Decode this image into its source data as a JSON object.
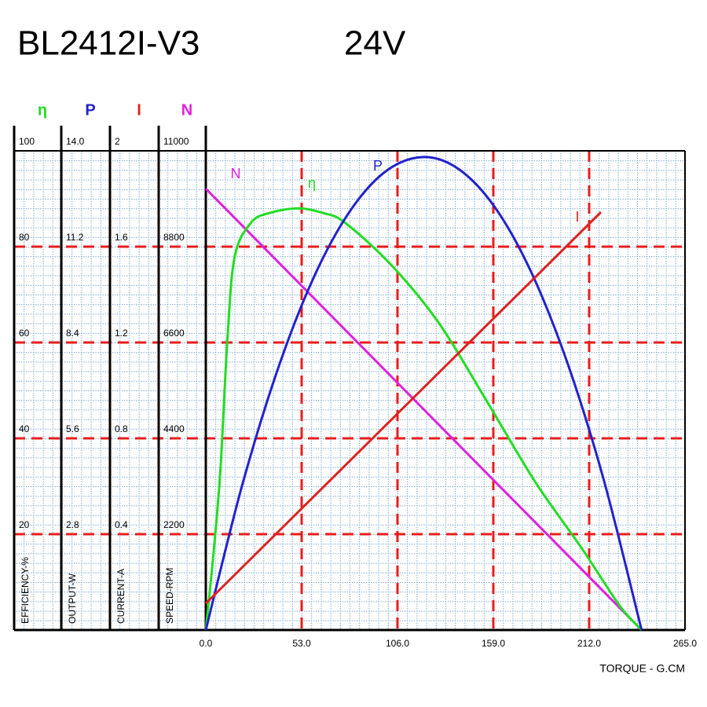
{
  "chart_data": {
    "type": "line",
    "title": "BL2412I-V3",
    "subtitle": "24V",
    "x_label": "TORQUE - G.CM",
    "xlim": [
      0,
      265
    ],
    "xticks": [
      {
        "value": 0,
        "label": "0.0"
      },
      {
        "value": 53,
        "label": "53.0"
      },
      {
        "value": 106,
        "label": "106.0"
      },
      {
        "value": 159,
        "label": "159.0"
      },
      {
        "value": 212,
        "label": "212.0"
      },
      {
        "value": 265,
        "label": "265.0"
      }
    ],
    "grid": true,
    "minor_grid": true,
    "grid_color": "#e81c1c",
    "axes": [
      {
        "symbol": "η",
        "label": "EFFICIENCY-%",
        "color": "#22dd22",
        "lim": [
          0,
          100
        ],
        "ticks": [
          20,
          40,
          60,
          80,
          100
        ]
      },
      {
        "symbol": "P",
        "label": "OUTPUT-W",
        "color": "#2222cc",
        "lim": [
          0,
          14
        ],
        "ticks": [
          2.8,
          5.6,
          8.4,
          11.2,
          {
            "value": 14,
            "label": "14.0"
          }
        ]
      },
      {
        "symbol": "I",
        "label": "CURRENT-A",
        "color": "#dd2222",
        "lim": [
          0,
          2
        ],
        "ticks": [
          0.4,
          0.8,
          1.2,
          1.6,
          2
        ]
      },
      {
        "symbol": "N",
        "label": "SPEED-RPM",
        "color": "#e020e0",
        "lim": [
          0,
          11000
        ],
        "ticks": [
          2200,
          4400,
          6600,
          8800,
          11000
        ]
      }
    ],
    "series": [
      {
        "name": "N",
        "color": "#e020e0",
        "axis": 3,
        "x": [
          0,
          241
        ],
        "values": [
          10130,
          0
        ]
      },
      {
        "name": "η",
        "color": "#22dd22",
        "axis": 0,
        "x": [
          0,
          4,
          8,
          12,
          16,
          25,
          35,
          51,
          65,
          77,
          103,
          129,
          155,
          182,
          208,
          229,
          241
        ],
        "values": [
          0,
          15,
          33,
          61,
          78,
          85,
          87,
          88,
          87,
          85,
          76,
          64,
          48,
          31,
          17,
          5,
          0
        ]
      },
      {
        "name": "P",
        "color": "#2222cc",
        "axis": 1,
        "x": [
          0,
          20,
          40,
          60,
          80,
          100,
          120.5,
          140,
          160,
          180,
          200,
          220,
          241
        ],
        "values": [
          0,
          4.21,
          7.65,
          10.34,
          12.26,
          13.42,
          13.82,
          13.46,
          12.34,
          10.45,
          7.8,
          4.4,
          0
        ]
      },
      {
        "name": "I",
        "color": "#dd2222",
        "axis": 2,
        "x": [
          0,
          218.5
        ],
        "values": [
          0.111,
          1.744
        ]
      }
    ]
  }
}
